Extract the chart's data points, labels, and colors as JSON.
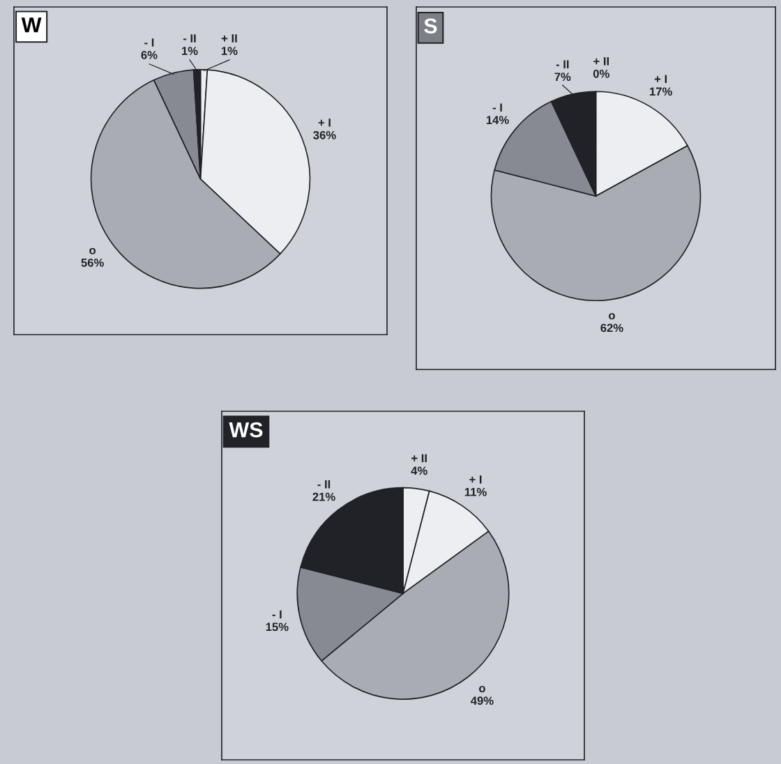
{
  "chart_data": [
    {
      "type": "pie",
      "title": "W",
      "categories": [
        "+ II",
        "+ I",
        "o",
        "- I",
        "- II"
      ],
      "values": [
        1,
        36,
        56,
        6,
        1
      ],
      "value_labels": [
        "1%",
        "36%",
        "56%",
        "6%",
        "1%"
      ],
      "colors": [
        "#eceef2",
        "#eceef2",
        "#a9acb3",
        "#878a92",
        "#202228"
      ]
    },
    {
      "type": "pie",
      "title": "S",
      "categories": [
        "+ II",
        "+ I",
        "o",
        "- I",
        "- II"
      ],
      "values": [
        0,
        17,
        62,
        14,
        7
      ],
      "value_labels": [
        "0%",
        "17%",
        "62%",
        "14%",
        "7%"
      ],
      "colors": [
        "#eceef2",
        "#eceef2",
        "#a9acb3",
        "#878a92",
        "#202228"
      ]
    },
    {
      "type": "pie",
      "title": "WS",
      "categories": [
        "+ II",
        "+ I",
        "o",
        "- I",
        "- II"
      ],
      "values": [
        4,
        11,
        49,
        15,
        21
      ],
      "value_labels": [
        "4%",
        "11%",
        "49%",
        "15%",
        "21%"
      ],
      "colors": [
        "#eceef2",
        "#eceef2",
        "#a9acb3",
        "#878a92",
        "#202228"
      ]
    }
  ]
}
